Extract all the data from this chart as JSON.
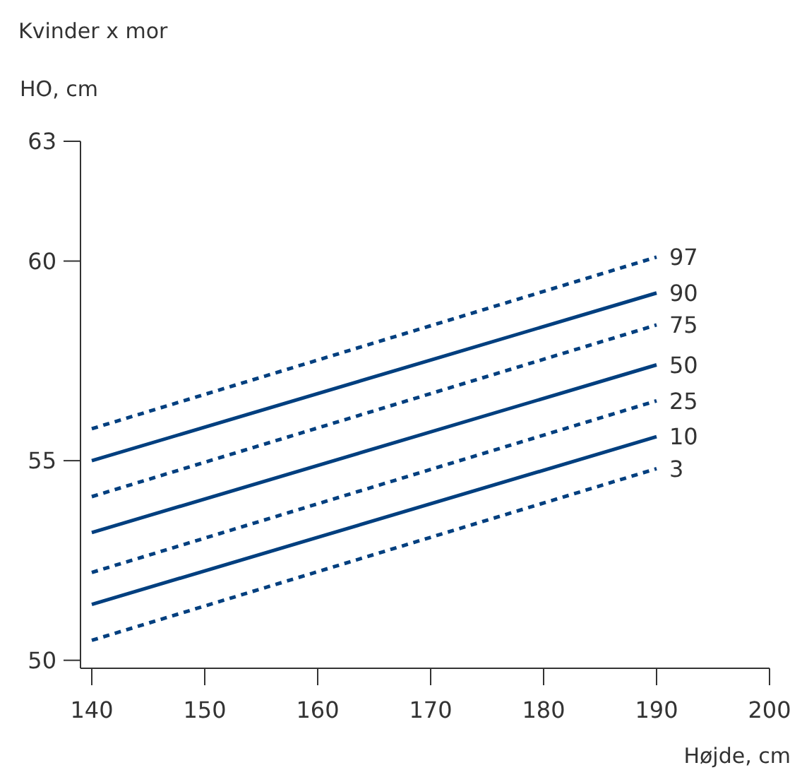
{
  "chart_data": {
    "type": "line",
    "title": "Kvinder x mor",
    "ylabel": "HO, cm",
    "xlabel": "Højde, cm",
    "x": [
      140,
      190
    ],
    "xlim": [
      139,
      200
    ],
    "xticks": [
      140,
      150,
      160,
      170,
      180,
      190,
      200
    ],
    "ylim": [
      49.8,
      63
    ],
    "yticks": [
      50,
      55,
      60,
      63
    ],
    "grid": false,
    "legend": false,
    "marker": "none",
    "series": [
      {
        "name": "97",
        "color": "#003f7f",
        "line_style": "dashed",
        "values": [
          55.8,
          60.1
        ]
      },
      {
        "name": "90",
        "color": "#003f7f",
        "line_style": "solid",
        "values": [
          55.0,
          59.2
        ]
      },
      {
        "name": "75",
        "color": "#003f7f",
        "line_style": "dashed",
        "values": [
          54.1,
          58.4
        ]
      },
      {
        "name": "50",
        "color": "#003f7f",
        "line_style": "solid",
        "values": [
          53.2,
          57.4
        ]
      },
      {
        "name": "25",
        "color": "#003f7f",
        "line_style": "dashed",
        "values": [
          52.2,
          56.5
        ]
      },
      {
        "name": "10",
        "color": "#003f7f",
        "line_style": "solid",
        "values": [
          51.4,
          55.6
        ]
      },
      {
        "name": "3",
        "color": "#003f7f",
        "line_style": "dashed",
        "values": [
          50.5,
          54.8
        ]
      }
    ]
  }
}
